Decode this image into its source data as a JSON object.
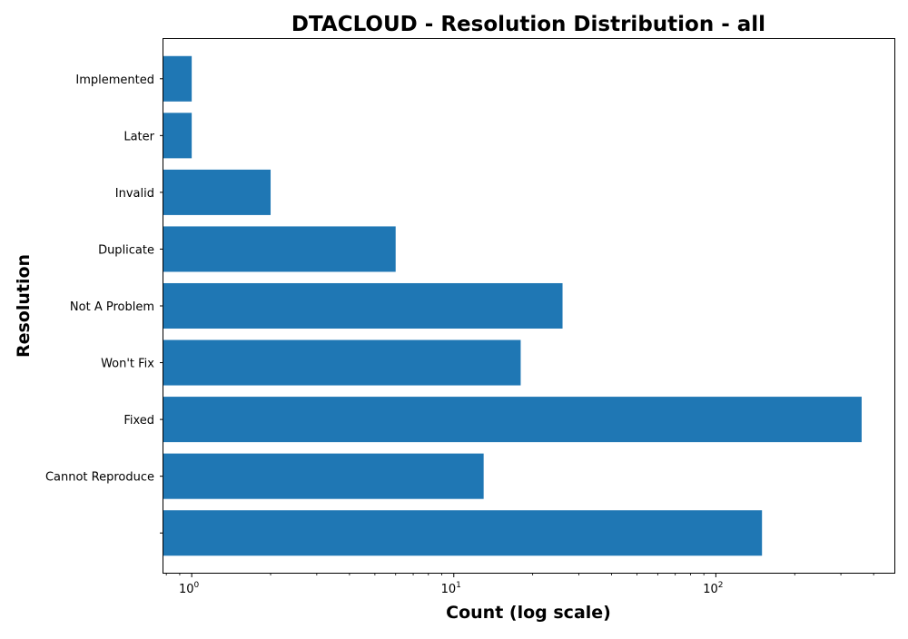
{
  "chart_data": {
    "type": "bar",
    "orientation": "horizontal",
    "title": "DTACLOUD - Resolution Distribution - all",
    "xlabel": "Count (log scale)",
    "ylabel": "Resolution",
    "xscale": "log",
    "xlim": [
      0.78,
      480
    ],
    "xticks": [
      {
        "base": "10",
        "exp": "0",
        "value": 1
      },
      {
        "base": "10",
        "exp": "1",
        "value": 10
      },
      {
        "base": "10",
        "exp": "2",
        "value": 100
      }
    ],
    "categories": [
      "",
      "Cannot Reproduce",
      "Fixed",
      "Won't Fix",
      "Not A Problem",
      "Duplicate",
      "Invalid",
      "Later",
      "Implemented"
    ],
    "values": [
      150,
      13,
      360,
      18,
      26,
      6,
      2,
      1,
      1
    ],
    "bar_color": "#1f77b4",
    "grid": false,
    "legend": "none"
  }
}
